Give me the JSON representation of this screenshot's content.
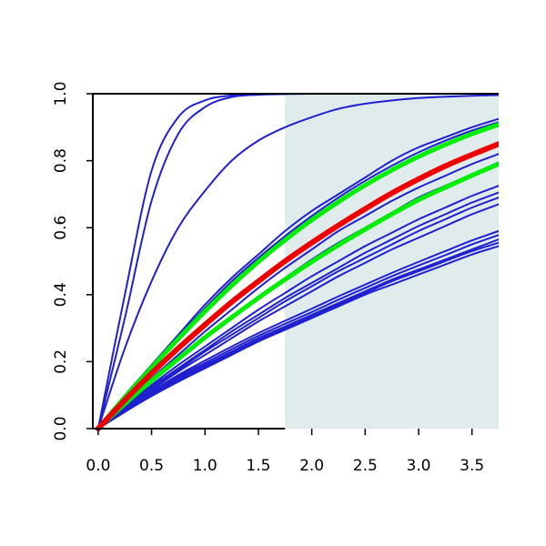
{
  "chart_data": {
    "type": "line",
    "title": "",
    "xlabel": "",
    "ylabel": "",
    "xlim": [
      -0.05,
      3.75
    ],
    "ylim": [
      0.0,
      1.0
    ],
    "x_ticks": [
      0.0,
      0.5,
      1.0,
      1.5,
      2.0,
      2.5,
      3.0,
      3.5
    ],
    "x_tick_labels": [
      "0.0",
      "0.5",
      "1.0",
      "1.5",
      "2.0",
      "2.5",
      "3.0",
      "3.5"
    ],
    "y_ticks": [
      0.0,
      0.2,
      0.4,
      0.6,
      0.8,
      1.0
    ],
    "y_tick_labels": [
      "0.0",
      "0.2",
      "0.4",
      "0.6",
      "0.8",
      "1.0"
    ],
    "shaded_region": {
      "x_from": 1.75,
      "x_to": 3.75,
      "color": "#e0ecec"
    },
    "grid": false,
    "legend": "none",
    "x": [
      0.0,
      0.25,
      0.5,
      0.75,
      1.0,
      1.25,
      1.5,
      1.75,
      2.0,
      2.25,
      2.5,
      2.75,
      3.0,
      3.25,
      3.5,
      3.75
    ],
    "series": [
      {
        "color": "#2020d0",
        "width": 2,
        "values": [
          0.0,
          0.4,
          0.77,
          0.93,
          0.98,
          0.995,
          0.998,
          1.0,
          1.0,
          1.0,
          1.0,
          1.0,
          1.0,
          1.0,
          1.0,
          1.0
        ]
      },
      {
        "color": "#2020d0",
        "width": 2,
        "values": [
          0.0,
          0.33,
          0.68,
          0.88,
          0.96,
          0.99,
          0.997,
          0.999,
          1.0,
          1.0,
          1.0,
          1.0,
          1.0,
          1.0,
          1.0,
          1.0
        ]
      },
      {
        "color": "#2020d0",
        "width": 2,
        "values": [
          0.0,
          0.24,
          0.44,
          0.6,
          0.71,
          0.8,
          0.86,
          0.9,
          0.93,
          0.955,
          0.97,
          0.98,
          0.987,
          0.991,
          0.994,
          0.996
        ]
      },
      {
        "color": "#2020d0",
        "width": 2,
        "values": [
          0.0,
          0.1,
          0.19,
          0.28,
          0.37,
          0.45,
          0.52,
          0.59,
          0.65,
          0.7,
          0.75,
          0.8,
          0.84,
          0.87,
          0.9,
          0.925
        ]
      },
      {
        "color": "#2020d0",
        "width": 2,
        "values": [
          0.0,
          0.095,
          0.185,
          0.275,
          0.36,
          0.44,
          0.51,
          0.575,
          0.635,
          0.69,
          0.74,
          0.785,
          0.825,
          0.86,
          0.89,
          0.915
        ]
      },
      {
        "color": "#2020d0",
        "width": 2,
        "values": [
          0.0,
          0.08,
          0.15,
          0.22,
          0.29,
          0.355,
          0.42,
          0.48,
          0.535,
          0.59,
          0.635,
          0.68,
          0.72,
          0.755,
          0.79,
          0.82
        ]
      },
      {
        "color": "#2020d0",
        "width": 2,
        "values": [
          0.0,
          0.075,
          0.145,
          0.21,
          0.275,
          0.335,
          0.395,
          0.45,
          0.505,
          0.555,
          0.6,
          0.645,
          0.69,
          0.725,
          0.76,
          0.795
        ]
      },
      {
        "color": "#2020d0",
        "width": 2,
        "values": [
          0.0,
          0.065,
          0.13,
          0.19,
          0.245,
          0.3,
          0.355,
          0.405,
          0.455,
          0.5,
          0.545,
          0.585,
          0.625,
          0.66,
          0.695,
          0.725
        ]
      },
      {
        "color": "#2020d0",
        "width": 2,
        "values": [
          0.0,
          0.063,
          0.125,
          0.18,
          0.235,
          0.29,
          0.34,
          0.39,
          0.435,
          0.48,
          0.525,
          0.565,
          0.605,
          0.64,
          0.675,
          0.705
        ]
      },
      {
        "color": "#2020d0",
        "width": 2,
        "values": [
          0.0,
          0.06,
          0.12,
          0.175,
          0.23,
          0.28,
          0.33,
          0.38,
          0.425,
          0.47,
          0.51,
          0.55,
          0.59,
          0.625,
          0.66,
          0.69
        ]
      },
      {
        "color": "#2020d0",
        "width": 2,
        "values": [
          0.0,
          0.058,
          0.115,
          0.17,
          0.22,
          0.27,
          0.32,
          0.365,
          0.41,
          0.455,
          0.495,
          0.535,
          0.57,
          0.605,
          0.64,
          0.67
        ]
      },
      {
        "color": "#2020d0",
        "width": 2,
        "values": [
          0.0,
          0.05,
          0.097,
          0.14,
          0.18,
          0.22,
          0.26,
          0.295,
          0.33,
          0.365,
          0.4,
          0.43,
          0.46,
          0.49,
          0.52,
          0.545
        ]
      },
      {
        "color": "#2020d0",
        "width": 2,
        "values": [
          0.0,
          0.05,
          0.1,
          0.145,
          0.185,
          0.225,
          0.265,
          0.3,
          0.335,
          0.37,
          0.405,
          0.44,
          0.47,
          0.5,
          0.53,
          0.555
        ]
      },
      {
        "color": "#2020d0",
        "width": 2,
        "values": [
          0.0,
          0.052,
          0.103,
          0.15,
          0.19,
          0.23,
          0.27,
          0.305,
          0.34,
          0.375,
          0.41,
          0.445,
          0.475,
          0.505,
          0.535,
          0.565
        ]
      },
      {
        "color": "#2020d0",
        "width": 2,
        "values": [
          0.0,
          0.054,
          0.106,
          0.155,
          0.196,
          0.237,
          0.277,
          0.313,
          0.348,
          0.385,
          0.42,
          0.455,
          0.487,
          0.518,
          0.55,
          0.578
        ]
      },
      {
        "color": "#2020d0",
        "width": 2,
        "values": [
          0.0,
          0.056,
          0.11,
          0.16,
          0.203,
          0.245,
          0.285,
          0.322,
          0.358,
          0.395,
          0.43,
          0.465,
          0.498,
          0.53,
          0.562,
          0.59
        ]
      },
      {
        "color": "#00ee00",
        "width": 5,
        "values": [
          0.0,
          0.094,
          0.182,
          0.268,
          0.35,
          0.427,
          0.498,
          0.563,
          0.623,
          0.677,
          0.727,
          0.772,
          0.812,
          0.848,
          0.88,
          0.908
        ]
      },
      {
        "color": "#00ee00",
        "width": 5,
        "values": [
          0.0,
          0.074,
          0.143,
          0.208,
          0.272,
          0.332,
          0.39,
          0.445,
          0.498,
          0.548,
          0.595,
          0.64,
          0.683,
          0.72,
          0.756,
          0.79
        ]
      },
      {
        "color": "#ee0000",
        "width": 6,
        "values": [
          0.0,
          0.085,
          0.165,
          0.24,
          0.31,
          0.378,
          0.44,
          0.5,
          0.555,
          0.607,
          0.656,
          0.703,
          0.745,
          0.784,
          0.818,
          0.85
        ]
      }
    ]
  }
}
